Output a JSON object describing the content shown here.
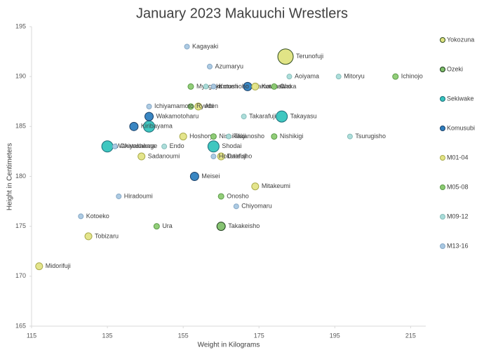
{
  "chart_data": {
    "type": "scatter",
    "title": "January 2023 Makuuchi Wrestlers",
    "x_label": "Weight in Kilograms",
    "y_label": "Height in Centimeters",
    "xlim": [
      115,
      219
    ],
    "xticks": [
      115,
      135,
      155,
      175,
      195,
      215
    ],
    "ylim": [
      165,
      195
    ],
    "yticks": [
      165,
      170,
      175,
      180,
      185,
      190,
      195
    ],
    "legend": "right",
    "series": [
      {
        "name": "Yokozuna",
        "color": "#dfe37f",
        "stroke": "#2e4a1e",
        "x": [
          182
        ],
        "values": [
          192
        ],
        "labels": [
          "Terunofuji"
        ]
      },
      {
        "name": "Ozeki",
        "color": "#7fc06a",
        "stroke": "#1c3a1a",
        "x": [
          165
        ],
        "values": [
          175
        ],
        "labels": [
          "Takakeisho"
        ]
      },
      {
        "name": "Sekiwake",
        "color": "#35c4bd",
        "stroke": "#1d6c78",
        "x": [
          181,
          135,
          163,
          146
        ],
        "values": [
          186,
          183,
          183,
          185
        ],
        "labels": [
          "Takayasu",
          "Wakatakakage",
          "Shodai",
          null
        ]
      },
      {
        "name": "Komusubi",
        "color": "#2e7fbf",
        "stroke": "#1b3f66",
        "x": [
          172,
          146,
          142,
          158
        ],
        "values": [
          189,
          186,
          185,
          180
        ],
        "labels": [
          "Tamawashi",
          "Wakamotoharu",
          "Kiribayama",
          "Meisei"
        ]
      },
      {
        "name": "M01-04",
        "color": "#e3e486",
        "stroke": "#a9aa4a",
        "x": [
          174,
          159,
          155,
          144,
          165,
          174,
          130,
          117
        ],
        "values": [
          189,
          187,
          184,
          182,
          182,
          179,
          174,
          171
        ],
        "labels": [
          "Kotonowaka",
          "Abi",
          "Hoshoryu",
          "Sadanoumi",
          "Daieisho",
          "Mitakeumi",
          "Tobizaru",
          "Midorifuji"
        ]
      },
      {
        "name": "M05-08",
        "color": "#8ccb72",
        "stroke": "#5b9a48",
        "x": [
          157,
          179,
          211,
          157,
          163,
          179,
          165,
          148
        ],
        "values": [
          189,
          189,
          190,
          187,
          184,
          184,
          178,
          175
        ],
        "labels": [
          "Myogiryu",
          "Oho",
          "Ichinojo",
          "Ryuden",
          "Nishikifuji",
          "Nishikigi",
          "Onosho",
          "Ura"
        ]
      },
      {
        "name": "M09-12",
        "color": "#a9dcd9",
        "stroke": "#86bdb9",
        "x": [
          183,
          196,
          199,
          167,
          150,
          171,
          161
        ],
        "values": [
          190,
          190,
          184,
          184,
          183,
          186,
          189
        ],
        "labels": [
          "Aoiyama",
          "Mitoryu",
          "Tsurugisho",
          "Takanosho",
          "Endo",
          "Takarafuji",
          "Okinoumi"
        ]
      },
      {
        "name": "M13-16",
        "color": "#a9c8e2",
        "stroke": "#86a8c6",
        "x": [
          156,
          162,
          163,
          146,
          137,
          138,
          169,
          128,
          163
        ],
        "values": [
          193,
          191,
          189,
          187,
          183,
          178,
          177,
          176,
          182
        ],
        "labels": [
          "Kagayaki",
          "Azumaryu",
          "Kotoshoho",
          "Ichiyamamoto",
          "Chiyoshoma",
          "Hiradoumi",
          "Chiyomaru",
          "Kotoeko",
          "Hokutofuji"
        ]
      }
    ]
  }
}
